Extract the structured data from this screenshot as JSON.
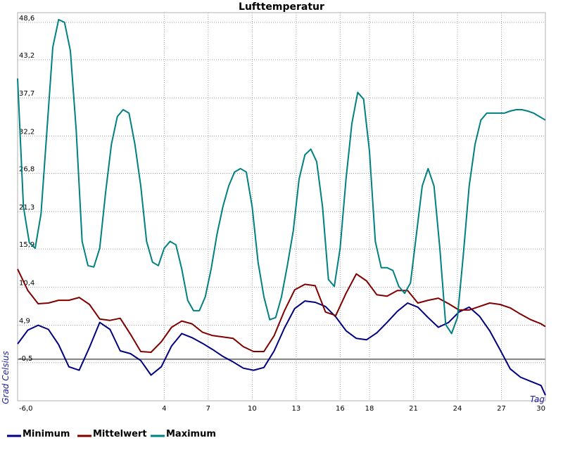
{
  "chart_data": {
    "type": "line",
    "title": "Lufttemperatur",
    "xlabel": "Tag",
    "ylabel": "Grad Celsius",
    "xlim": [
      -6,
      30
    ],
    "ylim": [
      -6,
      50
    ],
    "x_ticks": [
      "-6,0",
      "4",
      "7",
      "10",
      "13",
      "16",
      "18",
      "21",
      "24",
      "27",
      "30"
    ],
    "y_ticks": [
      "48,6",
      "43,2",
      "37,7",
      "32,2",
      "26,8",
      "21,3",
      "15,9",
      "10,4",
      "4,9",
      "-0,5"
    ],
    "zero_line": 0,
    "grid": true,
    "legend_position": "bottom-left",
    "series": [
      {
        "name": "Minimum",
        "color": "#000080",
        "x": [
          -6,
          -5.3,
          -4.6,
          -3.9,
          -3.2,
          -2.5,
          -1.8,
          -1.1,
          -0.4,
          0.3,
          1,
          1.7,
          2.4,
          3.1,
          3.8,
          4.5,
          5.2,
          5.9,
          6.6,
          7.3,
          8,
          8.7,
          9.4,
          10.1,
          10.8,
          11.5,
          12.2,
          12.9,
          13.6,
          14.3,
          15,
          15.7,
          16.4,
          17.1,
          17.8,
          18.5,
          19.2,
          19.9,
          20.6,
          21.3,
          22,
          22.7,
          23.4,
          24.1,
          24.8,
          25.5,
          26.2,
          26.9,
          27.6,
          28.3,
          29,
          29.7,
          30
        ],
        "values": [
          2.2,
          4.2,
          4.9,
          4.3,
          2.1,
          -1.1,
          -1.6,
          1.7,
          5.3,
          4.3,
          1.2,
          0.8,
          -0.2,
          -2.3,
          -1.1,
          1.9,
          3.7,
          3.1,
          2.3,
          1.4,
          0.4,
          -0.4,
          -1.3,
          -1.6,
          -1.2,
          1.2,
          4.5,
          7.3,
          8.4,
          8.2,
          7.6,
          6.1,
          4.1,
          3.0,
          2.8,
          3.8,
          5.3,
          6.9,
          8.1,
          7.5,
          6.0,
          4.6,
          5.3,
          6.8,
          7.5,
          6.2,
          4.1,
          1.4,
          -1.4,
          -2.6,
          -3.2,
          -3.8,
          -5.2
        ]
      },
      {
        "name": "Mittelwert",
        "color": "#800000",
        "x": [
          -6,
          -5.3,
          -4.6,
          -3.9,
          -3.2,
          -2.5,
          -1.8,
          -1.1,
          -0.4,
          0.3,
          1,
          1.7,
          2.4,
          3.1,
          3.8,
          4.5,
          5.2,
          5.9,
          6.6,
          7.3,
          8,
          8.7,
          9.4,
          10.1,
          10.8,
          11.5,
          12.2,
          12.9,
          13.6,
          14.3,
          15,
          15.7,
          16.4,
          17.1,
          17.8,
          18.5,
          19.2,
          19.9,
          20.6,
          21.3,
          22,
          22.7,
          23.4,
          24.1,
          24.8,
          25.5,
          26.2,
          26.9,
          27.6,
          28.3,
          29,
          29.7,
          30
        ],
        "values": [
          13.0,
          9.9,
          8.0,
          8.1,
          8.5,
          8.5,
          8.9,
          7.9,
          5.8,
          5.6,
          5.9,
          3.6,
          1.1,
          1.0,
          2.5,
          4.6,
          5.5,
          5.1,
          3.9,
          3.4,
          3.2,
          3.0,
          1.8,
          1.1,
          1.1,
          3.4,
          7.0,
          10.0,
          10.8,
          10.6,
          6.8,
          6.3,
          9.5,
          12.3,
          11.3,
          9.3,
          9.1,
          9.9,
          9.9,
          8.1,
          8.5,
          8.8,
          8.0,
          7.1,
          7.1,
          7.6,
          8.1,
          7.9,
          7.4,
          6.5,
          5.7,
          5.1,
          4.7
        ]
      },
      {
        "name": "Maximum",
        "color": "#008080",
        "x": [
          -6,
          -5.6,
          -5.2,
          -4.8,
          -4.4,
          -4.0,
          -3.6,
          -3.2,
          -2.8,
          -2.4,
          -2.0,
          -1.6,
          -1.2,
          -0.8,
          -0.4,
          0.0,
          0.4,
          0.8,
          1.2,
          1.6,
          2.0,
          2.4,
          2.8,
          3.2,
          3.6,
          4.0,
          4.4,
          4.8,
          5.2,
          5.6,
          6.0,
          6.4,
          6.8,
          7.2,
          7.6,
          8.0,
          8.4,
          8.8,
          9.2,
          9.6,
          10.0,
          10.4,
          10.8,
          11.2,
          11.6,
          12.0,
          12.4,
          12.8,
          13.2,
          13.6,
          14.0,
          14.4,
          14.8,
          15.2,
          15.6,
          16.0,
          16.4,
          16.8,
          17.2,
          17.6,
          18.0,
          18.4,
          18.8,
          19.2,
          19.6,
          20.0,
          20.4,
          20.8,
          21.2,
          21.6,
          22.0,
          22.4,
          22.8,
          23.2,
          23.6,
          24.0,
          24.4,
          24.8,
          25.2,
          25.6,
          26.0,
          26.4,
          26.8,
          27.2,
          27.6,
          28.0,
          28.4,
          28.8,
          29.2,
          29.6,
          30.0
        ],
        "values": [
          40.5,
          22.0,
          16.8,
          16.0,
          21.0,
          33.0,
          45.0,
          49.0,
          48.6,
          44.5,
          33.0,
          17.0,
          13.5,
          13.3,
          16.0,
          24.0,
          31.0,
          35.0,
          36.0,
          35.5,
          31.0,
          25.0,
          17.0,
          14.0,
          13.5,
          16.0,
          17.0,
          16.5,
          13.0,
          8.5,
          7.0,
          7.0,
          9.0,
          13.0,
          18.0,
          22.0,
          25.0,
          27.0,
          27.5,
          27.0,
          22.0,
          14.0,
          9.0,
          5.7,
          6.0,
          9.0,
          13.5,
          18.5,
          26.0,
          29.5,
          30.3,
          28.5,
          22.0,
          11.5,
          10.5,
          16.0,
          26.0,
          34.0,
          38.5,
          37.5,
          30.0,
          17.0,
          13.2,
          13.2,
          12.8,
          10.5,
          9.5,
          11.0,
          18.0,
          25.0,
          27.5,
          25.0,
          16.0,
          5.0,
          3.7,
          6.0,
          15.0,
          25.0,
          31.0,
          34.5,
          35.5,
          35.5,
          35.5,
          35.5,
          35.8,
          36.0,
          36.0,
          35.8,
          35.5,
          35.0,
          34.5
        ]
      }
    ]
  }
}
